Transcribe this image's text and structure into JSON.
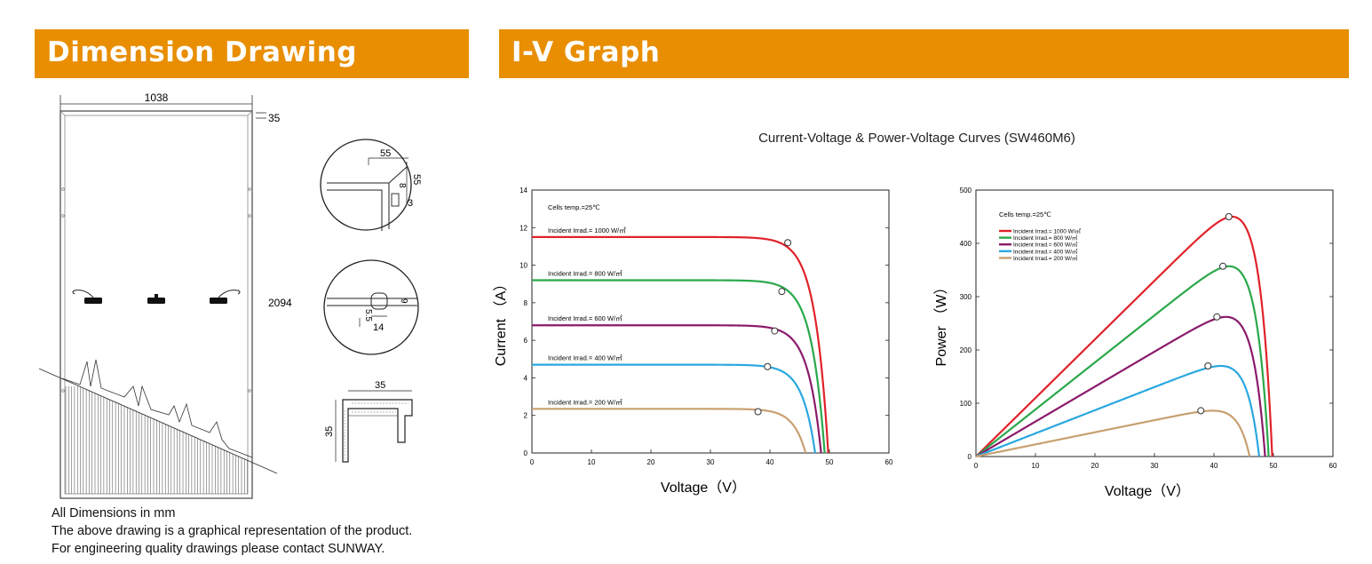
{
  "sections": {
    "dimension_title": "Dimension Drawing",
    "iv_title": "I-V Graph"
  },
  "drawing": {
    "width": "1038",
    "height": "2094",
    "frame_depth": "35",
    "corner_a": "55",
    "corner_b": "55",
    "corner_c": "8",
    "corner_d": "3",
    "hole_a": "9",
    "hole_b": "5.5",
    "hole_c": "14",
    "profile_w": "35",
    "profile_h": "35"
  },
  "notes": {
    "line1": "All Dimensions in mm",
    "line2": "The above drawing is a graphical representation of the product.",
    "line3": "For engineering quality drawings please contact SUNWAY."
  },
  "chart_title": "Current-Voltage & Power-Voltage Curves (SW460M6)",
  "chart_data": [
    {
      "type": "line",
      "title": "",
      "xlabel": "Voltage（V）",
      "ylabel": "Current （A）",
      "xlim": [
        0,
        60
      ],
      "ylim": [
        0,
        14
      ],
      "xticks": [
        0,
        10,
        20,
        30,
        40,
        50,
        60
      ],
      "yticks": [
        0,
        2,
        4,
        6,
        8,
        10,
        12,
        14
      ],
      "annotation": "Cells temp.=25℃",
      "series": [
        {
          "name": "Incident Irrad.= 1000 W/㎡",
          "color": "#e0222a",
          "isc": 11.5,
          "voc": 49.8,
          "mpp": [
            43.0,
            11.2
          ]
        },
        {
          "name": "Incident Irrad.= 800 W/㎡",
          "color": "#2aa84a",
          "isc": 9.2,
          "voc": 49.2,
          "mpp": [
            42.0,
            8.6
          ]
        },
        {
          "name": "Incident Irrad.= 600 W/㎡",
          "color": "#8b1a6b",
          "isc": 6.8,
          "voc": 48.6,
          "mpp": [
            40.8,
            6.5
          ]
        },
        {
          "name": "Incident Irrad.= 400 W/㎡",
          "color": "#2aa8e0",
          "isc": 4.7,
          "voc": 47.6,
          "mpp": [
            39.6,
            4.6
          ]
        },
        {
          "name": "Incident Irrad.= 200 W/㎡",
          "color": "#c8a070",
          "isc": 2.35,
          "voc": 46.0,
          "mpp": [
            38.0,
            2.2
          ]
        }
      ]
    },
    {
      "type": "line",
      "title": "",
      "xlabel": "Voltage（V）",
      "ylabel": "Power （W）",
      "xlim": [
        0,
        60
      ],
      "ylim": [
        0,
        500
      ],
      "xticks": [
        0,
        10,
        20,
        30,
        40,
        50,
        60
      ],
      "yticks": [
        0,
        100,
        200,
        300,
        400,
        500
      ],
      "annotation": "Cells temp.=25℃",
      "legend": "top-left",
      "series": [
        {
          "name": "Incident Irrad.= 1000 W/㎡",
          "color": "#e0222a",
          "pmax": 450,
          "vmp": 42.5,
          "voc": 49.8
        },
        {
          "name": "Incident Irrad.= 800 W/㎡",
          "color": "#2aa84a",
          "pmax": 357,
          "vmp": 41.5,
          "voc": 49.2
        },
        {
          "name": "Incident Irrad.= 600 W/㎡",
          "color": "#8b1a6b",
          "pmax": 262,
          "vmp": 40.5,
          "voc": 48.6
        },
        {
          "name": "Incident Irrad.= 400 W/㎡",
          "color": "#2aa8e0",
          "pmax": 170,
          "vmp": 39.0,
          "voc": 47.6
        },
        {
          "name": "Incident Irrad.= 200 W/㎡",
          "color": "#c8a070",
          "pmax": 86,
          "vmp": 37.8,
          "voc": 46.0
        }
      ]
    }
  ]
}
